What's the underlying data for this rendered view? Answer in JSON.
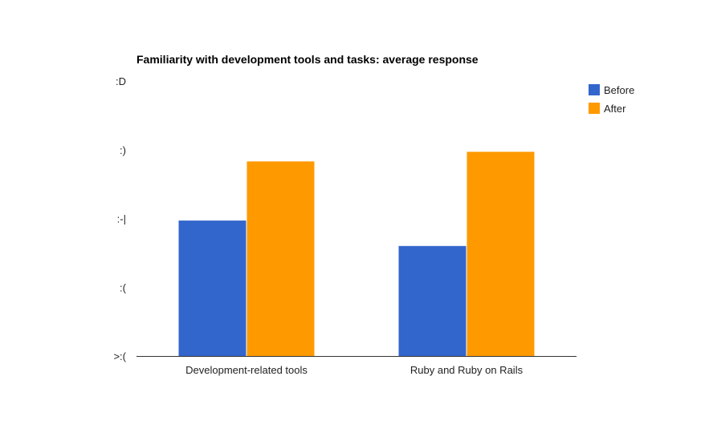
{
  "chart_data": {
    "type": "bar",
    "title": "Familiarity with development tools and tasks: average response",
    "categories": [
      "Development-related tools",
      "Ruby and Ruby on Rails"
    ],
    "series": [
      {
        "name": "Before",
        "color": "#3366cc",
        "values": [
          1.97,
          1.6
        ]
      },
      {
        "name": "After",
        "color": "#ff9900",
        "values": [
          2.83,
          2.97
        ]
      }
    ],
    "y_ticks": [
      {
        "value": 0,
        "label": ">:("
      },
      {
        "value": 1,
        "label": ":("
      },
      {
        "value": 2,
        "label": ":-|"
      },
      {
        "value": 3,
        "label": ":)"
      },
      {
        "value": 4,
        "label": ":D"
      }
    ],
    "ylim": [
      0,
      4
    ],
    "grid": false,
    "legend_position": "right"
  }
}
